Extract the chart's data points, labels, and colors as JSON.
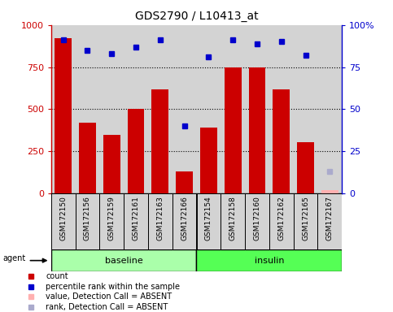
{
  "title": "GDS2790 / L10413_at",
  "samples": [
    "GSM172150",
    "GSM172156",
    "GSM172159",
    "GSM172161",
    "GSM172163",
    "GSM172166",
    "GSM172154",
    "GSM172158",
    "GSM172160",
    "GSM172162",
    "GSM172165",
    "GSM172167"
  ],
  "groups": [
    "baseline",
    "baseline",
    "baseline",
    "baseline",
    "baseline",
    "baseline",
    "insulin",
    "insulin",
    "insulin",
    "insulin",
    "insulin",
    "insulin"
  ],
  "baseline_n": 6,
  "insulin_n": 6,
  "count_values": [
    920,
    420,
    350,
    500,
    620,
    130,
    390,
    750,
    750,
    620,
    305,
    20
  ],
  "percentile_values": [
    91,
    85,
    83,
    87,
    91,
    40,
    81,
    91,
    89,
    90,
    82,
    null
  ],
  "absent_count": [
    null,
    null,
    null,
    null,
    null,
    null,
    null,
    null,
    null,
    null,
    null,
    20
  ],
  "absent_rank": [
    null,
    null,
    null,
    null,
    null,
    null,
    null,
    null,
    null,
    null,
    null,
    13
  ],
  "ylim_left": [
    0,
    1000
  ],
  "ylim_right": [
    0,
    100
  ],
  "yticks_left": [
    0,
    250,
    500,
    750,
    1000
  ],
  "yticks_right": [
    0,
    25,
    50,
    75,
    100
  ],
  "bar_color": "#cc0000",
  "dot_color": "#0000cc",
  "absent_bar_color": "#ffb0b0",
  "absent_dot_color": "#aaaacc",
  "baseline_color": "#aaffaa",
  "insulin_color": "#55ff55",
  "bg_color": "#d3d3d3",
  "legend_items": [
    "count",
    "percentile rank within the sample",
    "value, Detection Call = ABSENT",
    "rank, Detection Call = ABSENT"
  ],
  "legend_colors": [
    "#cc0000",
    "#0000cc",
    "#ffb0b0",
    "#aaaacc"
  ],
  "figsize": [
    4.83,
    3.84
  ],
  "dpi": 100
}
